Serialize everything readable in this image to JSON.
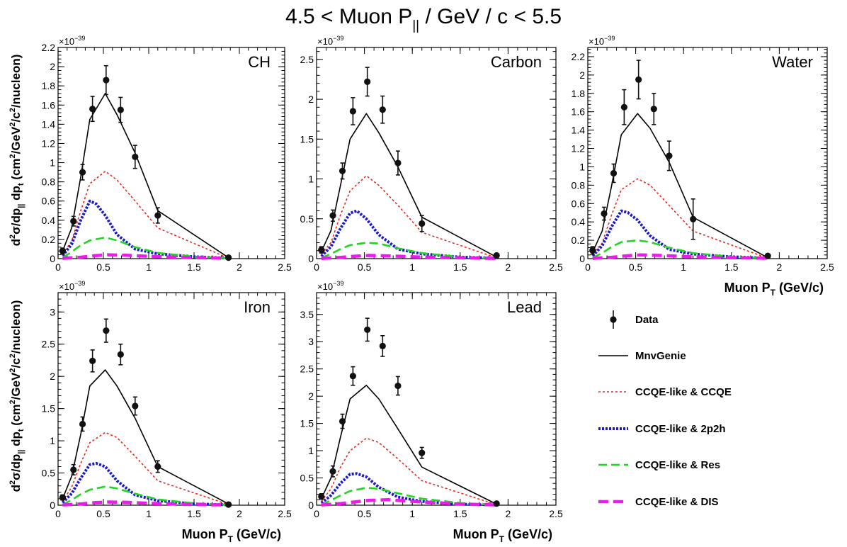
{
  "title": {
    "prefix": "4.5 < Muon P",
    "sub": "||",
    "suffix": " / GeV / c < 5.5"
  },
  "colors": {
    "data": "#111111",
    "mnvgenie": "#000000",
    "ccqe": "#e8261c",
    "twop2h": "#1a1acc",
    "res": "#22d422",
    "dis": "#e81ee8",
    "frame": "#000000"
  },
  "labels": {
    "xaxis_main": "Muon P",
    "xaxis_sub": "T",
    "xaxis_unit": " (GeV/c)",
    "yaxis_parts": {
      "d2": "d",
      "sup2": "2",
      "sigma": "σ/dp",
      "par": "||",
      "dp": " dp",
      "t": "t",
      "rest1": " (cm",
      "rest2": "/GeV",
      "rest3": "/c",
      "rest4": "/nucleon)"
    },
    "multiplier_base": "×10",
    "multiplier_exp": "−39"
  },
  "legend": {
    "items": [
      {
        "key": "data",
        "label": "Data"
      },
      {
        "key": "mnvgenie",
        "label": "MnvGenie"
      },
      {
        "key": "ccqe",
        "label": "CCQE-like & CCQE"
      },
      {
        "key": "twop2h",
        "label": "CCQE-like & 2p2h"
      },
      {
        "key": "res",
        "label": "CCQE-like & Res"
      },
      {
        "key": "dis",
        "label": "CCQE-like & DIS"
      }
    ]
  },
  "chart_data": [
    {
      "type": "line",
      "panel_label": "CH",
      "x_ticks": [
        "0",
        "0.5",
        "1",
        "1.5",
        "2",
        "2.5"
      ],
      "xlim": [
        0,
        2.5
      ],
      "ylim": [
        0,
        2.2
      ],
      "y_ticks": [
        "0",
        "0.2",
        "0.4",
        "0.6",
        "0.8",
        "1",
        "1.2",
        "1.4",
        "1.6",
        "1.8",
        "2",
        "2.2"
      ],
      "y_tick_values": [
        0,
        0.2,
        0.4,
        0.6,
        0.8,
        1,
        1.2,
        1.4,
        1.6,
        1.8,
        2,
        2.2
      ],
      "show_xlabel": false,
      "show_ylabel": true,
      "data": {
        "x": [
          0.05,
          0.17,
          0.27,
          0.38,
          0.53,
          0.69,
          0.85,
          1.1,
          1.88
        ],
        "y": [
          0.08,
          0.39,
          0.9,
          1.56,
          1.86,
          1.55,
          1.06,
          0.45,
          0.01
        ],
        "err": [
          0.03,
          0.05,
          0.08,
          0.13,
          0.15,
          0.13,
          0.12,
          0.08,
          0.01
        ]
      },
      "series": [
        {
          "name": "MnvGenie",
          "key": "mnvgenie",
          "x": [
            0.05,
            0.15,
            0.25,
            0.35,
            0.52,
            0.65,
            0.85,
            1.1,
            1.88
          ],
          "y": [
            0.08,
            0.32,
            0.85,
            1.45,
            1.72,
            1.5,
            1.1,
            0.5,
            0.01
          ]
        },
        {
          "name": "CCQE-like & CCQE",
          "key": "ccqe",
          "x": [
            0.05,
            0.15,
            0.25,
            0.35,
            0.52,
            0.65,
            0.85,
            1.1,
            1.88
          ],
          "y": [
            0.05,
            0.18,
            0.5,
            0.78,
            0.91,
            0.82,
            0.6,
            0.32,
            0.005
          ]
        },
        {
          "name": "CCQE-like & 2p2h",
          "key": "twop2h",
          "x": [
            0.05,
            0.15,
            0.25,
            0.35,
            0.42,
            0.52,
            0.65,
            0.85,
            1.1,
            1.5,
            1.88
          ],
          "y": [
            0.03,
            0.15,
            0.4,
            0.6,
            0.57,
            0.45,
            0.25,
            0.1,
            0.05,
            0.02,
            0.005
          ]
        },
        {
          "name": "CCQE-like & Res",
          "key": "res",
          "x": [
            0.05,
            0.15,
            0.25,
            0.35,
            0.52,
            0.65,
            0.85,
            1.1,
            1.5,
            1.88
          ],
          "y": [
            0.01,
            0.07,
            0.14,
            0.19,
            0.22,
            0.19,
            0.12,
            0.06,
            0.02,
            0.005
          ]
        },
        {
          "name": "CCQE-like & DIS",
          "key": "dis",
          "x": [
            0.05,
            0.25,
            0.4,
            0.55,
            0.75,
            1.1,
            1.5,
            1.88
          ],
          "y": [
            0.003,
            0.015,
            0.03,
            0.04,
            0.035,
            0.02,
            0.01,
            0.003
          ]
        }
      ]
    },
    {
      "type": "line",
      "panel_label": "Carbon",
      "x_ticks": [
        "0",
        "0.5",
        "1",
        "1.5",
        "2",
        "2.5"
      ],
      "xlim": [
        0,
        2.5
      ],
      "ylim": [
        0,
        2.65
      ],
      "y_ticks": [
        "0",
        "0.5",
        "1",
        "1.5",
        "2",
        "2.5"
      ],
      "y_tick_values": [
        0,
        0.5,
        1,
        1.5,
        2,
        2.5
      ],
      "show_xlabel": false,
      "show_ylabel": false,
      "data": {
        "x": [
          0.05,
          0.17,
          0.27,
          0.38,
          0.53,
          0.69,
          0.85,
          1.1,
          1.88
        ],
        "y": [
          0.11,
          0.54,
          1.1,
          1.85,
          2.22,
          1.87,
          1.2,
          0.44,
          0.04
        ],
        "err": [
          0.04,
          0.07,
          0.1,
          0.17,
          0.18,
          0.17,
          0.15,
          0.1,
          0.02
        ]
      },
      "series": [
        {
          "name": "MnvGenie",
          "key": "mnvgenie",
          "x": [
            0.05,
            0.15,
            0.25,
            0.35,
            0.52,
            0.65,
            0.85,
            1.1,
            1.88
          ],
          "y": [
            0.09,
            0.35,
            0.92,
            1.5,
            1.82,
            1.58,
            1.15,
            0.52,
            0.02
          ]
        },
        {
          "name": "CCQE-like & CCQE",
          "key": "ccqe",
          "x": [
            0.05,
            0.15,
            0.25,
            0.35,
            0.52,
            0.65,
            0.85,
            1.1,
            1.88
          ],
          "y": [
            0.06,
            0.2,
            0.55,
            0.85,
            1.04,
            0.92,
            0.67,
            0.33,
            0.01
          ]
        },
        {
          "name": "CCQE-like & 2p2h",
          "key": "twop2h",
          "x": [
            0.05,
            0.15,
            0.25,
            0.35,
            0.42,
            0.52,
            0.65,
            0.85,
            1.1,
            1.5,
            1.88
          ],
          "y": [
            0.03,
            0.15,
            0.38,
            0.57,
            0.6,
            0.5,
            0.3,
            0.12,
            0.06,
            0.02,
            0.005
          ]
        },
        {
          "name": "CCQE-like & Res",
          "key": "res",
          "x": [
            0.05,
            0.15,
            0.25,
            0.35,
            0.52,
            0.65,
            0.85,
            1.1,
            1.5,
            1.88
          ],
          "y": [
            0.01,
            0.06,
            0.12,
            0.17,
            0.2,
            0.19,
            0.13,
            0.07,
            0.02,
            0.005
          ]
        },
        {
          "name": "CCQE-like & DIS",
          "key": "dis",
          "x": [
            0.05,
            0.25,
            0.4,
            0.55,
            0.75,
            1.1,
            1.5,
            1.88
          ],
          "y": [
            0.003,
            0.015,
            0.03,
            0.04,
            0.035,
            0.02,
            0.01,
            0.003
          ]
        }
      ]
    },
    {
      "type": "line",
      "panel_label": "Water",
      "x_ticks": [
        "0",
        "0.5",
        "1",
        "1.5",
        "2",
        "2.5"
      ],
      "xlim": [
        0,
        2.5
      ],
      "ylim": [
        0,
        2.3
      ],
      "y_ticks": [
        "0",
        "0.2",
        "0.4",
        "0.6",
        "0.8",
        "1",
        "1.2",
        "1.4",
        "1.6",
        "1.8",
        "2",
        "2.2"
      ],
      "y_tick_values": [
        0,
        0.2,
        0.4,
        0.6,
        0.8,
        1,
        1.2,
        1.4,
        1.6,
        1.8,
        2,
        2.2
      ],
      "show_xlabel": true,
      "show_ylabel": false,
      "data": {
        "x": [
          0.05,
          0.17,
          0.27,
          0.38,
          0.53,
          0.69,
          0.85,
          1.1,
          1.88
        ],
        "y": [
          0.09,
          0.49,
          0.93,
          1.65,
          1.95,
          1.63,
          1.12,
          0.43,
          0.03
        ],
        "err": [
          0.04,
          0.07,
          0.1,
          0.19,
          0.21,
          0.17,
          0.16,
          0.22,
          0.02
        ]
      },
      "series": [
        {
          "name": "MnvGenie",
          "key": "mnvgenie",
          "x": [
            0.05,
            0.15,
            0.25,
            0.35,
            0.52,
            0.65,
            0.85,
            1.1,
            1.88
          ],
          "y": [
            0.07,
            0.3,
            0.8,
            1.35,
            1.58,
            1.42,
            1.05,
            0.45,
            0.01
          ]
        },
        {
          "name": "CCQE-like & CCQE",
          "key": "ccqe",
          "x": [
            0.05,
            0.15,
            0.25,
            0.35,
            0.52,
            0.65,
            0.85,
            1.1,
            1.88
          ],
          "y": [
            0.05,
            0.17,
            0.48,
            0.75,
            0.87,
            0.8,
            0.58,
            0.3,
            0.005
          ]
        },
        {
          "name": "CCQE-like & 2p2h",
          "key": "twop2h",
          "x": [
            0.05,
            0.15,
            0.25,
            0.35,
            0.42,
            0.52,
            0.65,
            0.85,
            1.1,
            1.5,
            1.88
          ],
          "y": [
            0.03,
            0.14,
            0.35,
            0.52,
            0.5,
            0.42,
            0.25,
            0.1,
            0.05,
            0.02,
            0.005
          ]
        },
        {
          "name": "CCQE-like & Res",
          "key": "res",
          "x": [
            0.05,
            0.15,
            0.25,
            0.35,
            0.52,
            0.65,
            0.85,
            1.1,
            1.5,
            1.88
          ],
          "y": [
            0.01,
            0.06,
            0.13,
            0.18,
            0.2,
            0.18,
            0.12,
            0.06,
            0.02,
            0.005
          ]
        },
        {
          "name": "CCQE-like & DIS",
          "key": "dis",
          "x": [
            0.05,
            0.25,
            0.4,
            0.55,
            0.75,
            1.1,
            1.5,
            1.88
          ],
          "y": [
            0.003,
            0.015,
            0.03,
            0.04,
            0.035,
            0.02,
            0.01,
            0.003
          ]
        }
      ]
    },
    {
      "type": "line",
      "panel_label": "Iron",
      "x_ticks": [
        "0",
        "0.5",
        "1",
        "1.5",
        "2",
        "2.5"
      ],
      "xlim": [
        0,
        2.5
      ],
      "ylim": [
        0,
        3.3
      ],
      "y_ticks": [
        "0",
        "0.5",
        "1",
        "1.5",
        "2",
        "2.5",
        "3"
      ],
      "y_tick_values": [
        0,
        0.5,
        1,
        1.5,
        2,
        2.5,
        3
      ],
      "show_xlabel": true,
      "show_ylabel": true,
      "data": {
        "x": [
          0.05,
          0.17,
          0.27,
          0.38,
          0.53,
          0.69,
          0.85,
          1.1,
          1.88
        ],
        "y": [
          0.12,
          0.55,
          1.26,
          2.24,
          2.71,
          2.34,
          1.54,
          0.6,
          0.01
        ],
        "err": [
          0.04,
          0.08,
          0.11,
          0.17,
          0.18,
          0.16,
          0.14,
          0.09,
          0.02
        ]
      },
      "series": [
        {
          "name": "MnvGenie",
          "key": "mnvgenie",
          "x": [
            0.05,
            0.15,
            0.25,
            0.35,
            0.52,
            0.65,
            0.85,
            1.1,
            1.88
          ],
          "y": [
            0.1,
            0.45,
            1.1,
            1.85,
            2.1,
            1.85,
            1.35,
            0.6,
            0.02
          ]
        },
        {
          "name": "CCQE-like & CCQE",
          "key": "ccqe",
          "x": [
            0.05,
            0.15,
            0.25,
            0.35,
            0.52,
            0.65,
            0.85,
            1.1,
            1.88
          ],
          "y": [
            0.06,
            0.28,
            0.65,
            0.97,
            1.13,
            1.05,
            0.76,
            0.38,
            0.01
          ]
        },
        {
          "name": "CCQE-like & 2p2h",
          "key": "twop2h",
          "x": [
            0.05,
            0.15,
            0.25,
            0.35,
            0.42,
            0.52,
            0.65,
            0.85,
            1.1,
            1.5,
            1.88
          ],
          "y": [
            0.04,
            0.18,
            0.42,
            0.63,
            0.65,
            0.6,
            0.38,
            0.16,
            0.07,
            0.02,
            0.005
          ]
        },
        {
          "name": "CCQE-like & Res",
          "key": "res",
          "x": [
            0.05,
            0.15,
            0.25,
            0.35,
            0.52,
            0.65,
            0.85,
            1.1,
            1.5,
            1.88
          ],
          "y": [
            0.01,
            0.08,
            0.17,
            0.24,
            0.29,
            0.26,
            0.18,
            0.09,
            0.03,
            0.005
          ]
        },
        {
          "name": "CCQE-like & DIS",
          "key": "dis",
          "x": [
            0.05,
            0.25,
            0.4,
            0.55,
            0.75,
            1.1,
            1.5,
            1.88
          ],
          "y": [
            0.004,
            0.02,
            0.04,
            0.05,
            0.045,
            0.025,
            0.01,
            0.004
          ]
        }
      ]
    },
    {
      "type": "line",
      "panel_label": "Lead",
      "x_ticks": [
        "0",
        "0.5",
        "1",
        "1.5",
        "2",
        "2.5"
      ],
      "xlim": [
        0,
        2.5
      ],
      "ylim": [
        0,
        3.9
      ],
      "y_ticks": [
        "0",
        "0.5",
        "1",
        "1.5",
        "2",
        "2.5",
        "3",
        "3.5"
      ],
      "y_tick_values": [
        0,
        0.5,
        1,
        1.5,
        2,
        2.5,
        3,
        3.5
      ],
      "show_xlabel": true,
      "show_ylabel": false,
      "data": {
        "x": [
          0.05,
          0.17,
          0.27,
          0.38,
          0.53,
          0.69,
          0.85,
          1.1,
          1.88
        ],
        "y": [
          0.16,
          0.62,
          1.54,
          2.37,
          3.22,
          2.92,
          2.19,
          0.96,
          0.03
        ],
        "err": [
          0.05,
          0.1,
          0.13,
          0.17,
          0.21,
          0.19,
          0.17,
          0.1,
          0.03
        ]
      },
      "series": [
        {
          "name": "MnvGenie",
          "key": "mnvgenie",
          "x": [
            0.05,
            0.15,
            0.25,
            0.35,
            0.52,
            0.65,
            0.85,
            1.1,
            1.88
          ],
          "y": [
            0.12,
            0.5,
            1.25,
            1.95,
            2.2,
            1.95,
            1.4,
            0.7,
            0.02
          ]
        },
        {
          "name": "CCQE-like & CCQE",
          "key": "ccqe",
          "x": [
            0.05,
            0.15,
            0.25,
            0.35,
            0.52,
            0.65,
            0.85,
            1.1,
            1.88
          ],
          "y": [
            0.07,
            0.3,
            0.7,
            1.0,
            1.23,
            1.15,
            0.85,
            0.45,
            0.01
          ]
        },
        {
          "name": "CCQE-like & 2p2h",
          "key": "twop2h",
          "x": [
            0.05,
            0.15,
            0.25,
            0.35,
            0.42,
            0.52,
            0.65,
            0.85,
            1.1,
            1.5,
            1.88
          ],
          "y": [
            0.04,
            0.18,
            0.4,
            0.57,
            0.58,
            0.52,
            0.33,
            0.15,
            0.07,
            0.02,
            0.005
          ]
        },
        {
          "name": "CCQE-like & Res",
          "key": "res",
          "x": [
            0.05,
            0.15,
            0.25,
            0.35,
            0.52,
            0.65,
            0.85,
            1.1,
            1.5,
            1.88
          ],
          "y": [
            0.01,
            0.09,
            0.18,
            0.26,
            0.32,
            0.3,
            0.22,
            0.12,
            0.04,
            0.005
          ]
        },
        {
          "name": "CCQE-like & DIS",
          "key": "dis",
          "x": [
            0.05,
            0.25,
            0.4,
            0.55,
            0.75,
            1.1,
            1.5,
            1.88
          ],
          "y": [
            0.005,
            0.03,
            0.06,
            0.09,
            0.1,
            0.06,
            0.02,
            0.005
          ]
        }
      ]
    }
  ]
}
